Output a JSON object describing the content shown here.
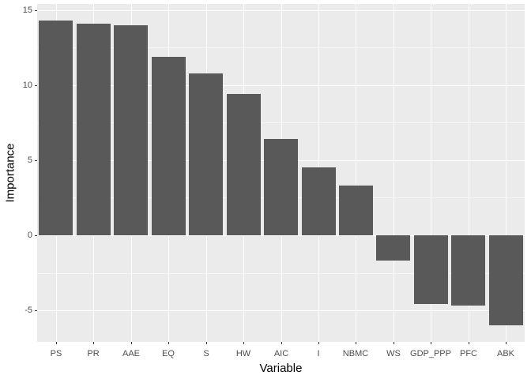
{
  "chart_data": {
    "type": "bar",
    "title": "",
    "xlabel": "Variable",
    "ylabel": "Importance",
    "categories": [
      "PS",
      "PR",
      "AAE",
      "EQ",
      "S",
      "HW",
      "AIC",
      "I",
      "NBMC",
      "WS",
      "GDP_PPP",
      "PFC",
      "ABK"
    ],
    "values": [
      14.3,
      14.1,
      14.0,
      11.9,
      10.8,
      9.4,
      6.4,
      4.5,
      3.3,
      -1.7,
      -4.6,
      -4.7,
      -6.0
    ],
    "ylim": [
      -7.1,
      15.4
    ],
    "yticks": [
      -5,
      0,
      5,
      10,
      15
    ],
    "ytick_labels": [
      "-5",
      "0",
      "5",
      "10",
      "15"
    ],
    "yticks_minor": [
      -2.5,
      2.5,
      7.5,
      12.5
    ],
    "grid": "on",
    "legend": "none",
    "bar_rel_width": 0.9,
    "colors": {
      "bar": "#595959",
      "panel_bg": "#EBEBEB",
      "gridline": "#FFFFFF",
      "tick_text": "#4D4D4D",
      "axis_title": "#000000",
      "tick_mark": "#333333",
      "page_bg": "#FFFFFF"
    }
  }
}
